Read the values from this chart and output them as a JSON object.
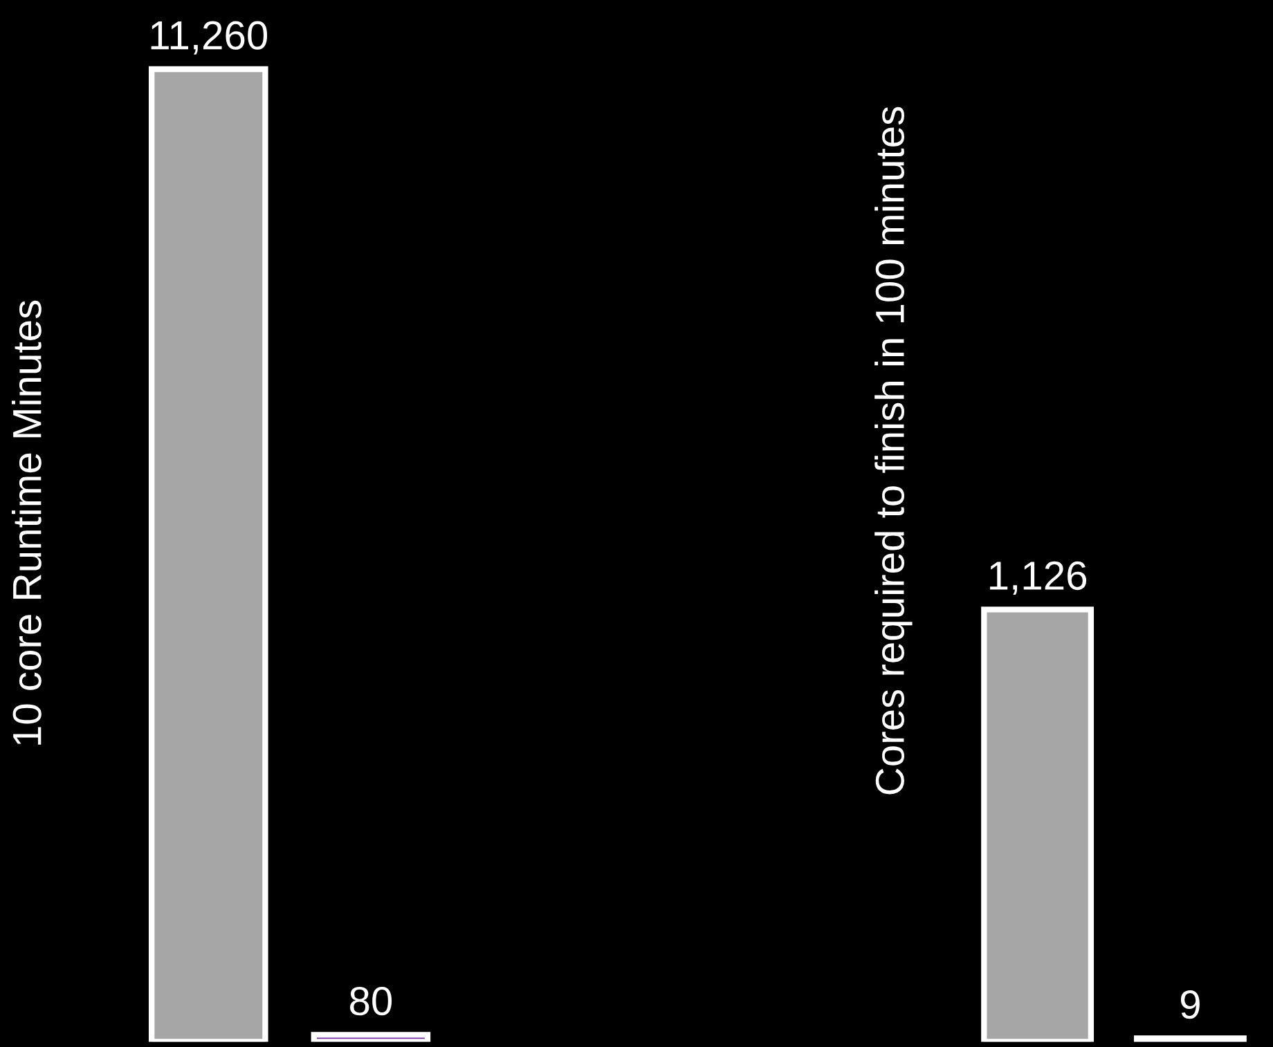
{
  "chart_data": [
    {
      "type": "bar",
      "ylabel": "10 core Runtime Minutes",
      "categories": [
        null,
        null
      ],
      "values": [
        11260,
        80
      ],
      "value_labels": [
        "11,260",
        "80"
      ],
      "colors": [
        "#a6a6a6",
        "#7030a0"
      ],
      "ylim": [
        0,
        12000
      ],
      "tick_labels": false
    },
    {
      "type": "bar",
      "ylabel": "Cores required to finish in 100 minutes",
      "categories": [
        null,
        null
      ],
      "values": [
        1126,
        9
      ],
      "value_labels": [
        "1,126",
        "9"
      ],
      "colors": [
        "#a6a6a6",
        "#7030a0"
      ],
      "ylim": [
        0,
        2700
      ],
      "tick_labels": false
    }
  ]
}
